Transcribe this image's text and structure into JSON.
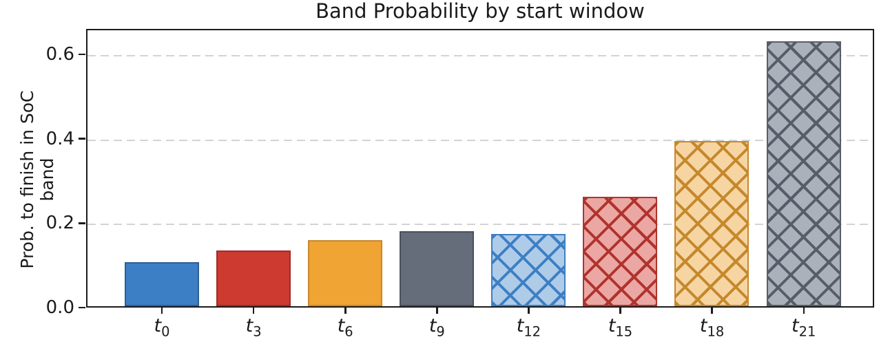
{
  "chart_data": {
    "type": "bar",
    "title": "Band Probability by start window",
    "xlabel": "",
    "ylabel": "Prob. to finish in SoC band",
    "categories": [
      "t_0",
      "t_3",
      "t_6",
      "t_9",
      "t_12",
      "t_15",
      "t_18",
      "t_21"
    ],
    "values": [
      0.104,
      0.132,
      0.156,
      0.178,
      0.172,
      0.259,
      0.392,
      0.628
    ],
    "yticks": [
      0.0,
      0.2,
      0.4,
      0.6
    ],
    "ytick_labels": [
      "0.0",
      "0.2",
      "0.4",
      "0.6"
    ],
    "ylim": [
      0,
      0.66
    ],
    "grid": "horizontal-dashed",
    "legend": "none",
    "bar_styles": [
      {
        "fill": "#3d7fc4",
        "edge": "#2c5f94",
        "hatch": "none"
      },
      {
        "fill": "#cd3a30",
        "edge": "#a02c28",
        "hatch": "none"
      },
      {
        "fill": "#f0a433",
        "edge": "#c5882c",
        "hatch": "none"
      },
      {
        "fill": "#666d7a",
        "edge": "#4a505a",
        "hatch": "none"
      },
      {
        "fill": "#aecbe8",
        "edge": "#3d7fc4",
        "hatch": "xx"
      },
      {
        "fill": "#eba7a3",
        "edge": "#b0332d",
        "hatch": "xx"
      },
      {
        "fill": "#f6d5a2",
        "edge": "#c5882c",
        "hatch": "xx"
      },
      {
        "fill": "#abb1bb",
        "edge": "#575d68",
        "hatch": "xx"
      }
    ],
    "colors": {
      "grid": "#d3d3d3",
      "spine": "#1a1a1a",
      "text": "#1a1a1a",
      "background": "#ffffff"
    }
  }
}
